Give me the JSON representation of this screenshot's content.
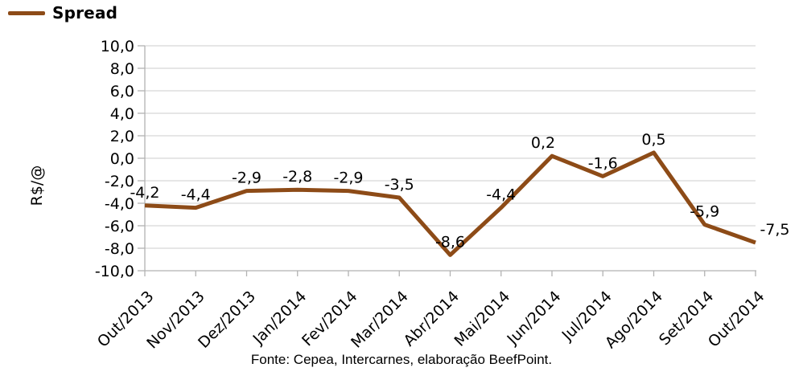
{
  "legend": {
    "label": "Spread"
  },
  "footer": {
    "source_text": "Fonte: Cepea, Intercarnes, elaboração BeefPoint."
  },
  "colors": {
    "line": "#8d4b17",
    "grid": "#d6d6d6",
    "axis": "#b2b2b2",
    "text": "#000000",
    "background": "#ffffff"
  },
  "chart_data": {
    "type": "line",
    "title": "",
    "categories": [
      "Out/2013",
      "Nov/2013",
      "Dez/2013",
      "Jan/2014",
      "Fev/2014",
      "Mar/2014",
      "Abr/2014",
      "Mai/2014",
      "Jun/2014",
      "Jul/2014",
      "Ago/2014",
      "Set/2014",
      "Out/2014"
    ],
    "series": [
      {
        "name": "Spread",
        "values": [
          -4.2,
          -4.4,
          -2.9,
          -2.8,
          -2.9,
          -3.5,
          -8.6,
          -4.4,
          0.2,
          -1.6,
          0.5,
          -5.9,
          -7.5
        ]
      }
    ],
    "data_labels": [
      "-4,2",
      "-4,4",
      "-2,9",
      "-2,8",
      "-2,9",
      "-3,5",
      "-8,6",
      "-4,4",
      "0,2",
      "-1,6",
      "0,5",
      "-5,9",
      "-7,5"
    ],
    "xlabel": "",
    "ylabel": "R$/@",
    "ylim": [
      -10,
      10
    ],
    "ytick_values": [
      10,
      8,
      6,
      4,
      2,
      0,
      -2,
      -4,
      -6,
      -8,
      -10
    ],
    "ytick_labels": [
      "10,0",
      "8,0",
      "6,0",
      "4,0",
      "2,0",
      "0,0",
      "-2,0",
      "-4,0",
      "-6,0",
      "-8,0",
      "-10,0"
    ],
    "grid": true,
    "legend_position": "top-left",
    "x_label_rotation": -45,
    "label_dx": {
      "8": -11,
      "12": 24
    }
  }
}
